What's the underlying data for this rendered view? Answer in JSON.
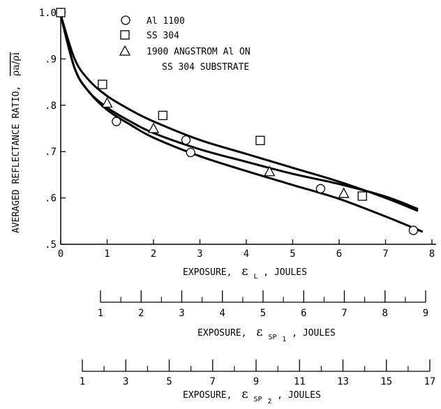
{
  "chart_data": {
    "type": "scatter",
    "ylabel": {
      "text": "AVERAGED REFLECTANCE RATIO,",
      "symbol": "ρa/ρi"
    },
    "xlim": [
      0,
      8
    ],
    "ylim": [
      0.5,
      1.0
    ],
    "x_ticks": [
      0,
      1,
      2,
      3,
      4,
      5,
      6,
      7,
      8
    ],
    "y_ticks": [
      0.5,
      0.6,
      0.7,
      0.8,
      0.9,
      1.0
    ],
    "y_tick_labels": [
      ".5",
      ".6",
      ".7",
      ".8",
      ".9",
      "1.0"
    ],
    "xlabel": {
      "prefix": "EXPOSURE,",
      "symbol": "ε",
      "sub": "L",
      "suffix": ", JOULES"
    },
    "legend": {
      "position": "top-center",
      "entries": [
        {
          "marker": "circle",
          "label": "Al 1100"
        },
        {
          "marker": "square",
          "label": "SS 304"
        },
        {
          "marker": "triangle",
          "label": "1900 ANGSTROM Al ON",
          "label2": "SS 304 SUBSTRATE"
        }
      ]
    },
    "series": [
      {
        "marker": "circle",
        "x": [
          0,
          1.2,
          2.7,
          2.8,
          5.6,
          7.6
        ],
        "y": [
          1.0,
          0.765,
          0.725,
          0.698,
          0.62,
          0.53
        ]
      },
      {
        "marker": "square",
        "x": [
          0,
          0.9,
          2.2,
          4.3,
          6.5
        ],
        "y": [
          1.0,
          0.845,
          0.778,
          0.724,
          0.604
        ]
      },
      {
        "marker": "triangle",
        "x": [
          1.0,
          2.0,
          4.5,
          6.1
        ],
        "y": [
          0.805,
          0.75,
          0.657,
          0.61
        ]
      }
    ],
    "curves": [
      {
        "x": [
          0,
          0.3,
          0.6,
          1,
          1.5,
          2,
          3,
          4,
          5,
          6,
          7,
          7.7
        ],
        "y": [
          0.995,
          0.9,
          0.855,
          0.82,
          0.79,
          0.765,
          0.725,
          0.695,
          0.665,
          0.635,
          0.6,
          0.572
        ]
      },
      {
        "x": [
          0,
          0.3,
          0.6,
          1,
          1.5,
          2,
          3,
          4,
          5,
          6,
          7,
          7.7
        ],
        "y": [
          0.995,
          0.88,
          0.83,
          0.795,
          0.765,
          0.74,
          0.705,
          0.678,
          0.652,
          0.63,
          0.603,
          0.576
        ]
      },
      {
        "x": [
          0,
          0.3,
          0.6,
          1,
          1.5,
          2,
          3,
          4,
          5,
          6,
          7,
          7.8
        ],
        "y": [
          0.995,
          0.88,
          0.83,
          0.79,
          0.758,
          0.73,
          0.69,
          0.658,
          0.628,
          0.598,
          0.56,
          0.527
        ]
      }
    ],
    "secondary_axes": [
      {
        "ticks": [
          1,
          2,
          3,
          4,
          5,
          6,
          7,
          8,
          9
        ],
        "xlabel": {
          "prefix": "EXPOSURE,",
          "symbol": "ε",
          "sub": "SP",
          "sub2": "1",
          "suffix": ", JOULES"
        }
      },
      {
        "ticks": [
          1,
          3,
          5,
          7,
          9,
          11,
          13,
          15,
          17
        ],
        "xlabel": {
          "prefix": "EXPOSURE,",
          "symbol": "ε",
          "sub": "SP",
          "sub2": "2",
          "suffix": ", JOULES"
        }
      }
    ]
  }
}
